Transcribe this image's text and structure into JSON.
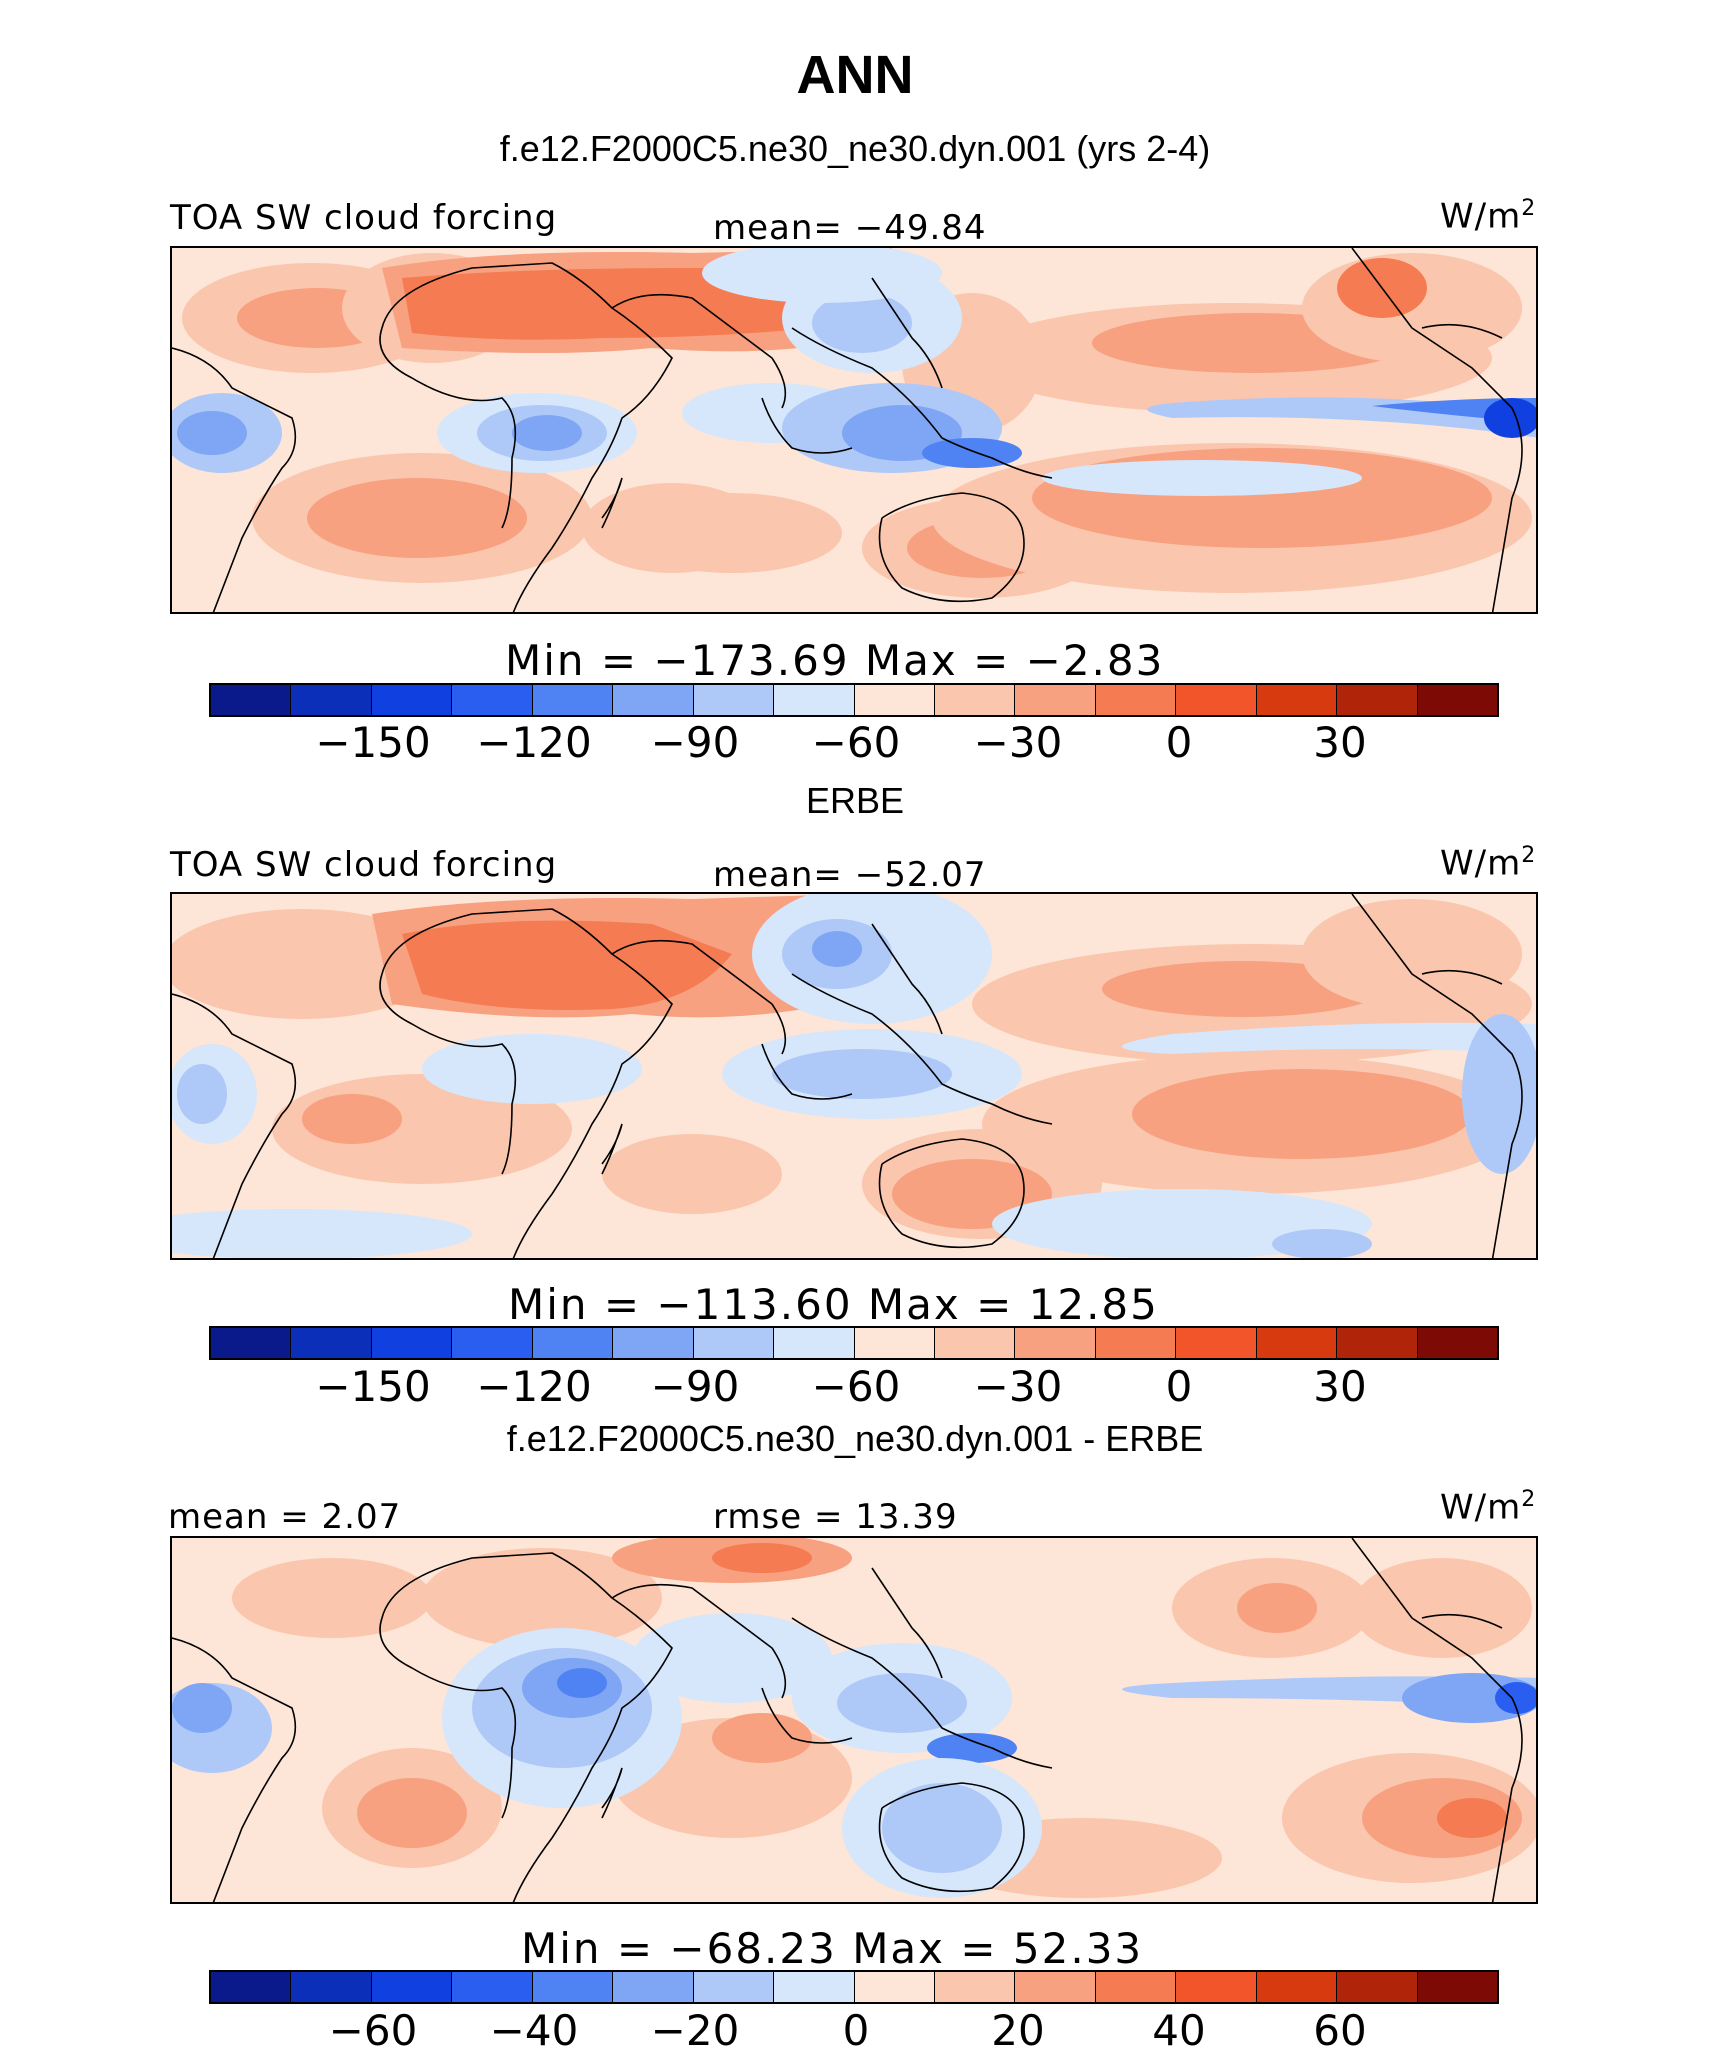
{
  "figure": {
    "title": "ANN",
    "colors": {
      "scale": [
        "#0a1a8a",
        "#0b2fb8",
        "#1040df",
        "#2a5ef0",
        "#4f82f2",
        "#7ea6f4",
        "#aec9f8",
        "#d6e6fb",
        "#fde6d7",
        "#fbc6ae",
        "#f7a180",
        "#f47b52",
        "#f2552a",
        "#d83a10",
        "#b0240a",
        "#7e0a06"
      ]
    },
    "panels": [
      {
        "header": "f.e12.F2000C5.ne30_ne30.dyn.001 (yrs 2-4)",
        "left_label": "TOA SW cloud forcing",
        "center_label": "mean=  −49.84",
        "units": "W/m",
        "units_sup": "2",
        "minmax": "Min  =  −173.69  Max  =   −2.83",
        "ticks": [
          "−150",
          "−120",
          "−90",
          "−60",
          "−30",
          "0",
          "30"
        ]
      },
      {
        "header": "ERBE",
        "left_label": "TOA SW cloud forcing",
        "center_label": "mean=  −52.07",
        "units": "W/m",
        "units_sup": "2",
        "minmax": "Min  =  −113.60  Max  =    12.85",
        "ticks": [
          "−150",
          "−120",
          "−90",
          "−60",
          "−30",
          "0",
          "30"
        ]
      },
      {
        "header": "f.e12.F2000C5.ne30_ne30.dyn.001 - ERBE",
        "left_label": "mean  =    2.07",
        "center_label": "rmse  =   13.39",
        "units": "W/m",
        "units_sup": "2",
        "minmax": "Min  =  −68.23  Max  =   52.33",
        "ticks": [
          "−60",
          "−40",
          "−20",
          "0",
          "20",
          "40",
          "60"
        ]
      }
    ]
  }
}
